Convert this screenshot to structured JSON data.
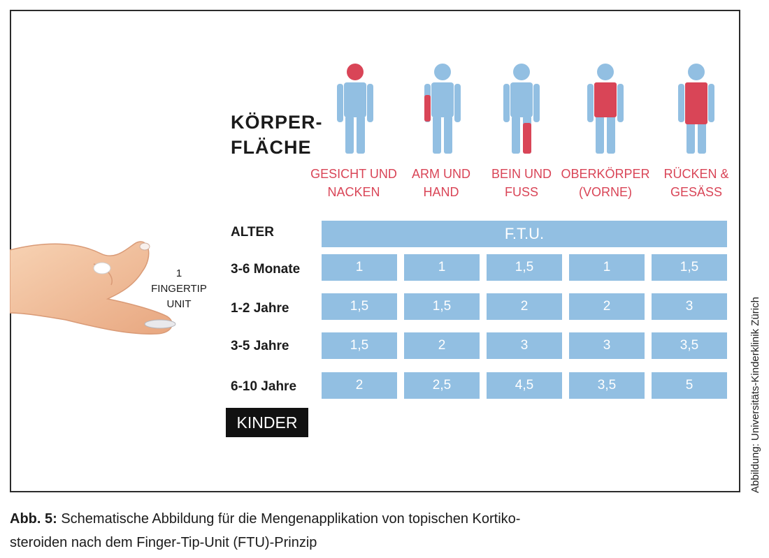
{
  "header": {
    "title_line1": "KÖRPER-",
    "title_line2": "FLÄCHE"
  },
  "colors": {
    "figure_blue": "#92bfe2",
    "highlight_red": "#d94557",
    "label_red": "#d94557",
    "cell_blue": "#92bfe2"
  },
  "regions": [
    {
      "label_line1": "GESICHT UND",
      "label_line2": "NACKEN",
      "icon": "body-face-neck-icon"
    },
    {
      "label_line1": "ARM UND",
      "label_line2": "HAND",
      "icon": "body-arm-hand-icon"
    },
    {
      "label_line1": "BEIN UND",
      "label_line2": "FUSS",
      "icon": "body-leg-foot-icon"
    },
    {
      "label_line1": "OBERKÖRPER",
      "label_line2": "(VORNE)",
      "icon": "body-upper-front-icon"
    },
    {
      "label_line1": "RÜCKEN &",
      "label_line2": "GESÄSS",
      "icon": "body-back-buttocks-icon"
    }
  ],
  "table": {
    "age_header": "ALTER",
    "unit_header": "F.T.U.",
    "rows": [
      {
        "age": "3-6 Monate",
        "values": [
          "1",
          "1",
          "1,5",
          "1",
          "1,5"
        ]
      },
      {
        "age": "1-2 Jahre",
        "values": [
          "1,5",
          "1,5",
          "2",
          "2",
          "3"
        ]
      },
      {
        "age": "3-5 Jahre",
        "values": [
          "1,5",
          "2",
          "3",
          "3",
          "3,5"
        ]
      },
      {
        "age": "6-10 Jahre",
        "values": [
          "2",
          "2,5",
          "4,5",
          "3,5",
          "5"
        ]
      }
    ]
  },
  "badge": "KINDER",
  "fingertip": {
    "line1": "1",
    "line2": "FINGERTIP",
    "line3": "UNIT"
  },
  "credit": "Abbildung: Universitäts-Kinderklinik Zürich",
  "caption": {
    "label": "Abb. 5:",
    "text_line1": "Schematische Abbildung für die Mengenapplikation von topischen Kortiko-",
    "text_line2": "steroiden nach dem Finger-Tip-Unit (FTU)-Prinzip"
  }
}
